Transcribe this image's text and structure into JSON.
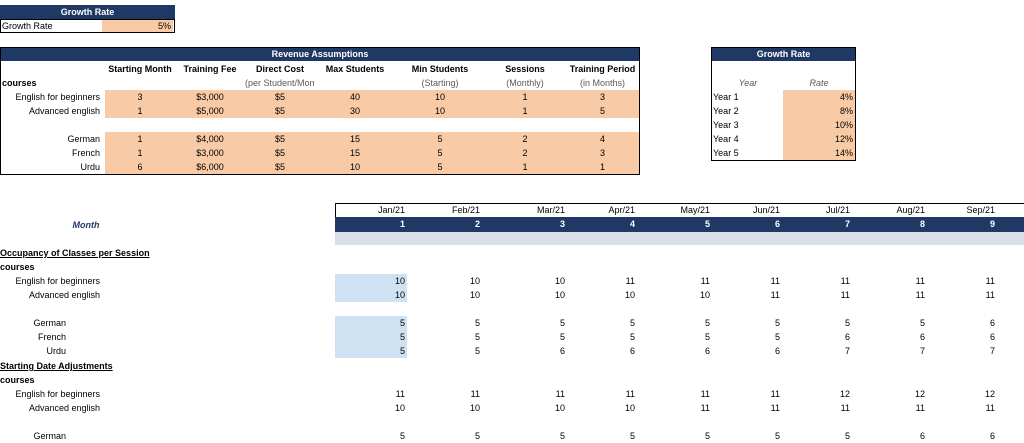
{
  "growth_rate": {
    "header": "Growth Rate",
    "label": "Growth Rate",
    "value": "5%"
  },
  "revenue": {
    "header": "Revenue Assumptions",
    "col_headers": [
      "Starting Month",
      "Training Fee",
      "Direct Cost",
      "Max Students",
      "Min Students",
      "Sessions",
      "Training Period"
    ],
    "col_subheaders": [
      "",
      "",
      "(per Student/Monthly)",
      "",
      "(Starting)",
      "(Monthly)",
      "(in Months)"
    ],
    "section_label": "courses",
    "rows": [
      {
        "name": "English for beginners",
        "vals": [
          "3",
          "$3,000",
          "$5",
          "40",
          "10",
          "1",
          "3"
        ]
      },
      {
        "name": "Advanced english",
        "vals": [
          "1",
          "$5,000",
          "$5",
          "30",
          "10",
          "1",
          "5"
        ]
      },
      {
        "name": "German",
        "vals": [
          "1",
          "$4,000",
          "$5",
          "15",
          "5",
          "2",
          "4"
        ]
      },
      {
        "name": "French",
        "vals": [
          "1",
          "$3,000",
          "$5",
          "15",
          "5",
          "2",
          "3"
        ]
      },
      {
        "name": "Urdu",
        "vals": [
          "6",
          "$6,000",
          "$5",
          "10",
          "5",
          "1",
          "1"
        ]
      }
    ]
  },
  "growth_table": {
    "header": "Growth Rate",
    "col_year": "Year",
    "col_rate": "Rate",
    "rows": [
      {
        "year": "Year 1",
        "rate": "4%"
      },
      {
        "year": "Year 2",
        "rate": "8%"
      },
      {
        "year": "Year 3",
        "rate": "10%"
      },
      {
        "year": "Year 4",
        "rate": "12%"
      },
      {
        "year": "Year 5",
        "rate": "14%"
      }
    ]
  },
  "timeline": {
    "month_label": "Month",
    "months": [
      "Jan/21",
      "Feb/21",
      "Mar/21",
      "Apr/21",
      "May/21",
      "Jun/21",
      "Jul/21",
      "Aug/21",
      "Sep/21"
    ],
    "numbers": [
      "1",
      "2",
      "3",
      "4",
      "5",
      "6",
      "7",
      "8",
      "9"
    ]
  },
  "occupancy": {
    "title": "Occupancy of Classes per Session",
    "section_label": "courses",
    "rows": [
      {
        "name": "English for beginners",
        "vals": [
          "10",
          "10",
          "10",
          "11",
          "11",
          "11",
          "11",
          "11",
          "11"
        ]
      },
      {
        "name": "Advanced english",
        "vals": [
          "10",
          "10",
          "10",
          "10",
          "10",
          "11",
          "11",
          "11",
          "11"
        ]
      },
      {
        "name": "German",
        "vals": [
          "5",
          "5",
          "5",
          "5",
          "5",
          "5",
          "5",
          "5",
          "6"
        ]
      },
      {
        "name": "French",
        "vals": [
          "5",
          "5",
          "5",
          "5",
          "5",
          "5",
          "6",
          "6",
          "6"
        ]
      },
      {
        "name": "Urdu",
        "vals": [
          "5",
          "5",
          "6",
          "6",
          "6",
          "6",
          "7",
          "7",
          "7"
        ]
      }
    ]
  },
  "starting": {
    "title": "Starting Date Adjustments",
    "section_label": "courses",
    "rows": [
      {
        "name": "English for beginners",
        "vals": [
          "11",
          "11",
          "11",
          "11",
          "11",
          "11",
          "12",
          "12",
          "12"
        ]
      },
      {
        "name": "Advanced english",
        "vals": [
          "10",
          "10",
          "10",
          "10",
          "11",
          "11",
          "11",
          "11",
          "11"
        ]
      },
      {
        "name": "German",
        "vals": [
          "5",
          "5",
          "5",
          "5",
          "5",
          "5",
          "5",
          "6",
          "6"
        ]
      }
    ]
  }
}
